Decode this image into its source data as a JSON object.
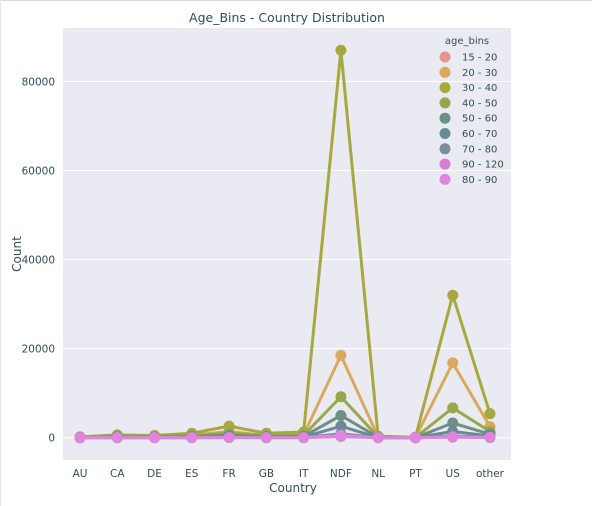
{
  "chart_data": {
    "type": "line",
    "title": "Age_Bins - Country Distribution",
    "xlabel": "Country",
    "ylabel": "Count",
    "categories": [
      "AU",
      "CA",
      "DE",
      "ES",
      "FR",
      "GB",
      "IT",
      "NDF",
      "NL",
      "PT",
      "US",
      "other"
    ],
    "ylim": [
      -5000,
      92000
    ],
    "yticks": [
      0,
      20000,
      40000,
      60000,
      80000
    ],
    "grid": true,
    "background": "#eaeaf2",
    "legend": {
      "title": "age_bins",
      "placement": "top-right"
    },
    "series": [
      {
        "name": "15 - 20",
        "color": "#e1968f",
        "values": [
          10,
          20,
          20,
          30,
          60,
          30,
          40,
          300,
          10,
          5,
          250,
          60
        ]
      },
      {
        "name": "20 - 30",
        "color": "#d9a95c",
        "values": [
          130,
          400,
          300,
          600,
          1400,
          500,
          650,
          18500,
          150,
          60,
          16800,
          2500
        ]
      },
      {
        "name": "30 - 40",
        "color": "#a9a83f",
        "values": [
          180,
          650,
          500,
          1000,
          2600,
          1000,
          1300,
          87000,
          350,
          100,
          32000,
          5400
        ]
      },
      {
        "name": "40 - 50",
        "color": "#95a84c",
        "values": [
          90,
          300,
          250,
          450,
          1000,
          450,
          550,
          9200,
          150,
          60,
          6700,
          1400
        ]
      },
      {
        "name": "50 - 60",
        "color": "#6d8f86",
        "values": [
          60,
          180,
          150,
          250,
          550,
          250,
          300,
          5000,
          80,
          30,
          3300,
          800
        ]
      },
      {
        "name": "60 - 70",
        "color": "#6a8a93",
        "values": [
          30,
          90,
          80,
          120,
          250,
          120,
          150,
          2600,
          40,
          15,
          1400,
          400
        ]
      },
      {
        "name": "70 - 80",
        "color": "#7a8f9e",
        "values": [
          10,
          30,
          30,
          40,
          90,
          40,
          50,
          900,
          15,
          5,
          400,
          150
        ]
      },
      {
        "name": "90 - 120",
        "color": "#d67fd1",
        "values": [
          2,
          5,
          5,
          8,
          15,
          8,
          10,
          300,
          3,
          1,
          150,
          40
        ]
      },
      {
        "name": "80 - 90",
        "color": "#e084de",
        "values": [
          5,
          10,
          10,
          15,
          30,
          15,
          20,
          500,
          5,
          2,
          200,
          60
        ]
      }
    ]
  }
}
